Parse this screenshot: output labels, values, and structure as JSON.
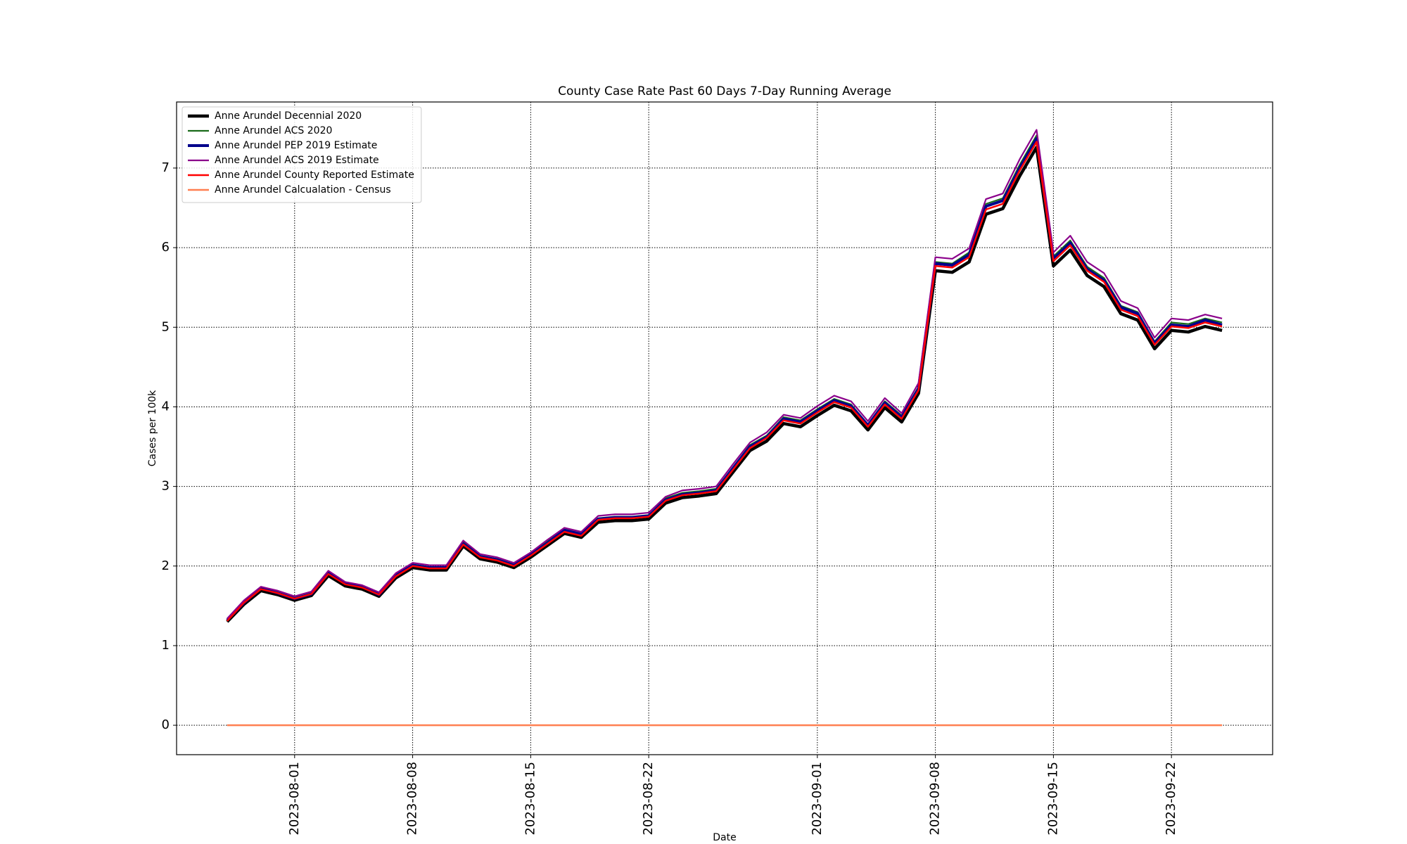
{
  "chart_data": {
    "type": "line",
    "title": "County Case Rate  Past 60 Days 7-Day Running Average",
    "xlabel": "Date",
    "ylabel": "Cases per 100k",
    "x": [
      "2023-07-28",
      "2023-07-29",
      "2023-07-30",
      "2023-07-31",
      "2023-08-01",
      "2023-08-02",
      "2023-08-03",
      "2023-08-04",
      "2023-08-05",
      "2023-08-06",
      "2023-08-07",
      "2023-08-08",
      "2023-08-09",
      "2023-08-10",
      "2023-08-11",
      "2023-08-12",
      "2023-08-13",
      "2023-08-14",
      "2023-08-15",
      "2023-08-16",
      "2023-08-17",
      "2023-08-18",
      "2023-08-19",
      "2023-08-20",
      "2023-08-21",
      "2023-08-22",
      "2023-08-23",
      "2023-08-24",
      "2023-08-25",
      "2023-08-26",
      "2023-08-27",
      "2023-08-28",
      "2023-08-29",
      "2023-08-30",
      "2023-08-31",
      "2023-09-01",
      "2023-09-02",
      "2023-09-03",
      "2023-09-04",
      "2023-09-05",
      "2023-09-06",
      "2023-09-07",
      "2023-09-08",
      "2023-09-09",
      "2023-09-10",
      "2023-09-11",
      "2023-09-12",
      "2023-09-13",
      "2023-09-14",
      "2023-09-15",
      "2023-09-16",
      "2023-09-17",
      "2023-09-18",
      "2023-09-19",
      "2023-09-20",
      "2023-09-21",
      "2023-09-22",
      "2023-09-23",
      "2023-09-24",
      "2023-09-25"
    ],
    "xlim": [
      "2023-07-25",
      "2023-09-28"
    ],
    "xticks": [
      "2023-08-01",
      "2023-08-08",
      "2023-08-15",
      "2023-08-22",
      "2023-09-01",
      "2023-09-08",
      "2023-09-15",
      "2023-09-22"
    ],
    "ylim": [
      -0.37,
      7.83
    ],
    "yticks": [
      0,
      1,
      2,
      3,
      4,
      5,
      6,
      7
    ],
    "grid": true,
    "legend": "upper left",
    "series": [
      {
        "name": "Anne Arundel Decennial 2020",
        "color": "#000000",
        "linewidth": 4.5,
        "values": [
          1.3,
          1.52,
          1.69,
          1.64,
          1.57,
          1.63,
          1.88,
          1.75,
          1.71,
          1.62,
          1.85,
          1.98,
          1.95,
          1.95,
          2.25,
          2.09,
          2.05,
          1.98,
          2.11,
          2.26,
          2.41,
          2.36,
          2.55,
          2.57,
          2.57,
          2.59,
          2.79,
          2.86,
          2.88,
          2.91,
          3.18,
          3.45,
          3.57,
          3.79,
          3.75,
          3.89,
          4.02,
          3.95,
          3.71,
          3.99,
          3.81,
          4.17,
          5.71,
          5.69,
          5.82,
          6.42,
          6.49,
          6.9,
          7.26,
          5.77,
          5.97,
          5.65,
          5.51,
          5.17,
          5.09,
          4.73,
          4.96,
          4.94,
          5.01,
          4.96
        ]
      },
      {
        "name": "Anne Arundel ACS 2020",
        "color": "#1a6b1a",
        "linewidth": 2.2,
        "values": [
          1.33,
          1.55,
          1.72,
          1.67,
          1.6,
          1.66,
          1.92,
          1.79,
          1.74,
          1.65,
          1.89,
          2.02,
          1.99,
          1.99,
          2.3,
          2.13,
          2.09,
          2.02,
          2.15,
          2.31,
          2.46,
          2.41,
          2.6,
          2.62,
          2.62,
          2.64,
          2.85,
          2.92,
          2.94,
          2.97,
          3.24,
          3.52,
          3.64,
          3.87,
          3.83,
          3.97,
          4.1,
          4.03,
          3.78,
          4.07,
          3.89,
          4.25,
          5.82,
          5.8,
          5.94,
          6.55,
          6.62,
          7.04,
          7.41,
          5.89,
          6.09,
          5.76,
          5.62,
          5.27,
          5.19,
          4.82,
          5.06,
          5.04,
          5.11,
          5.06
        ]
      },
      {
        "name": "Anne Arundel PEP 2019 Estimate",
        "color": "#00008b",
        "linewidth": 4,
        "values": [
          1.32,
          1.54,
          1.72,
          1.66,
          1.59,
          1.65,
          1.91,
          1.78,
          1.74,
          1.64,
          1.88,
          2.01,
          1.98,
          1.98,
          2.28,
          2.12,
          2.08,
          2.01,
          2.14,
          2.29,
          2.45,
          2.4,
          2.59,
          2.61,
          2.61,
          2.63,
          2.83,
          2.9,
          2.92,
          2.95,
          3.23,
          3.5,
          3.62,
          3.85,
          3.81,
          3.95,
          4.08,
          4.01,
          3.77,
          4.05,
          3.87,
          4.23,
          5.8,
          5.78,
          5.91,
          6.52,
          6.59,
          7.0,
          7.37,
          5.86,
          6.06,
          5.73,
          5.59,
          5.25,
          5.17,
          4.8,
          5.03,
          5.01,
          5.09,
          5.03
        ]
      },
      {
        "name": "Anne Arundel ACS 2019 Estimate",
        "color": "#8b008b",
        "linewidth": 2.2,
        "values": [
          1.34,
          1.57,
          1.74,
          1.69,
          1.62,
          1.68,
          1.94,
          1.8,
          1.76,
          1.67,
          1.91,
          2.04,
          2.01,
          2.01,
          2.32,
          2.15,
          2.11,
          2.04,
          2.17,
          2.33,
          2.48,
          2.43,
          2.63,
          2.65,
          2.65,
          2.67,
          2.87,
          2.95,
          2.97,
          3.0,
          3.28,
          3.55,
          3.68,
          3.9,
          3.86,
          4.01,
          4.14,
          4.07,
          3.82,
          4.11,
          3.92,
          4.3,
          5.88,
          5.86,
          5.99,
          6.61,
          6.68,
          7.11,
          7.48,
          5.94,
          6.15,
          5.82,
          5.68,
          5.33,
          5.24,
          4.87,
          5.11,
          5.09,
          5.16,
          5.11
        ]
      },
      {
        "name": "Anne Arundel County Reported Estimate",
        "color": "#ff0000",
        "linewidth": 2.5,
        "values": [
          1.31,
          1.54,
          1.71,
          1.66,
          1.59,
          1.65,
          1.9,
          1.77,
          1.73,
          1.64,
          1.87,
          2.0,
          1.97,
          1.97,
          2.27,
          2.11,
          2.07,
          2.0,
          2.13,
          2.28,
          2.43,
          2.38,
          2.58,
          2.6,
          2.6,
          2.62,
          2.82,
          2.89,
          2.91,
          2.94,
          3.21,
          3.48,
          3.61,
          3.83,
          3.79,
          3.93,
          4.06,
          3.99,
          3.75,
          4.03,
          3.85,
          4.21,
          5.77,
          5.75,
          5.88,
          6.48,
          6.55,
          6.97,
          7.33,
          5.83,
          6.03,
          5.71,
          5.57,
          5.22,
          5.14,
          4.78,
          5.01,
          4.99,
          5.06,
          5.01
        ]
      },
      {
        "name": "Anne Arundel Calcualation - Census",
        "color": "#ff7f50",
        "linewidth": 2.5,
        "values": [
          0,
          0,
          0,
          0,
          0,
          0,
          0,
          0,
          0,
          0,
          0,
          0,
          0,
          0,
          0,
          0,
          0,
          0,
          0,
          0,
          0,
          0,
          0,
          0,
          0,
          0,
          0,
          0,
          0,
          0,
          0,
          0,
          0,
          0,
          0,
          0,
          0,
          0,
          0,
          0,
          0,
          0,
          0,
          0,
          0,
          0,
          0,
          0,
          0,
          0,
          0,
          0,
          0,
          0,
          0,
          0,
          0,
          0,
          0,
          0
        ]
      }
    ]
  }
}
